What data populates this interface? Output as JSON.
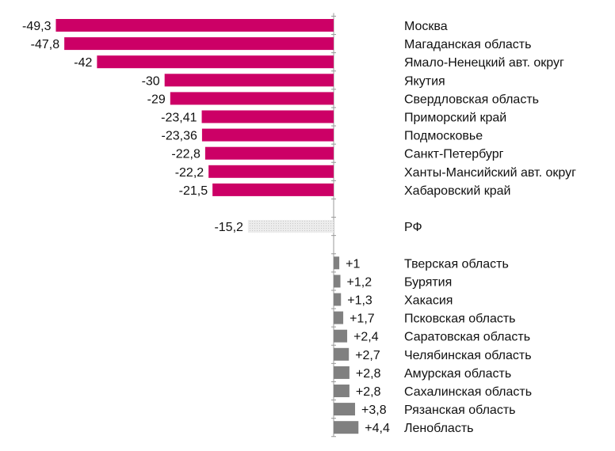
{
  "chart_data": {
    "type": "bar",
    "orientation": "horizontal",
    "title": "",
    "xlabel": "",
    "ylabel": "",
    "xlim": [
      -50,
      5
    ],
    "grid": false,
    "legend": "none",
    "colors": {
      "negative": "#cc0066",
      "reference": "#d9d9d9",
      "positive": "#808080",
      "axis": "#999999"
    },
    "rows": [
      {
        "category": "Москва",
        "value": -49.3,
        "label": "-49,3",
        "kind": "negative"
      },
      {
        "category": "Магаданская область",
        "value": -47.8,
        "label": "-47,8",
        "kind": "negative"
      },
      {
        "category": "Ямало-Ненецкий авт. округ",
        "value": -42,
        "label": "-42",
        "kind": "negative"
      },
      {
        "category": "Якутия",
        "value": -30,
        "label": "-30",
        "kind": "negative"
      },
      {
        "category": "Свердловская область",
        "value": -29,
        "label": "-29",
        "kind": "negative"
      },
      {
        "category": "Приморский край",
        "value": -23.41,
        "label": "-23,41",
        "kind": "negative"
      },
      {
        "category": "Подмосковье",
        "value": -23.36,
        "label": "-23,36",
        "kind": "negative"
      },
      {
        "category": "Санкт-Петербург",
        "value": -22.8,
        "label": "-22,8",
        "kind": "negative"
      },
      {
        "category": "Ханты-Мансийский авт. округ",
        "value": -22.2,
        "label": "-22,2",
        "kind": "negative"
      },
      {
        "category": "Хабаровский край",
        "value": -21.5,
        "label": "-21,5",
        "kind": "negative"
      },
      {
        "category": "РФ",
        "value": -15.2,
        "label": "-15,2",
        "kind": "reference"
      },
      {
        "category": "Тверская область",
        "value": 1,
        "label": "+1",
        "kind": "positive"
      },
      {
        "category": "Бурятия",
        "value": 1.2,
        "label": "+1,2",
        "kind": "positive"
      },
      {
        "category": "Хакасия",
        "value": 1.3,
        "label": "+1,3",
        "kind": "positive"
      },
      {
        "category": "Псковская область",
        "value": 1.7,
        "label": "+1,7",
        "kind": "positive"
      },
      {
        "category": "Саратовская область",
        "value": 2.4,
        "label": "+2,4",
        "kind": "positive"
      },
      {
        "category": "Челябинская область",
        "value": 2.7,
        "label": "+2,7",
        "kind": "positive"
      },
      {
        "category": "Амурская область",
        "value": 2.8,
        "label": "+2,8",
        "kind": "positive"
      },
      {
        "category": "Сахалинская область",
        "value": 2.8,
        "label": "+2,8",
        "kind": "positive"
      },
      {
        "category": "Рязанская область",
        "value": 3.8,
        "label": "+3,8",
        "kind": "positive"
      },
      {
        "category": "Ленобласть",
        "value": 4.4,
        "label": "+4,4",
        "kind": "positive"
      }
    ]
  }
}
